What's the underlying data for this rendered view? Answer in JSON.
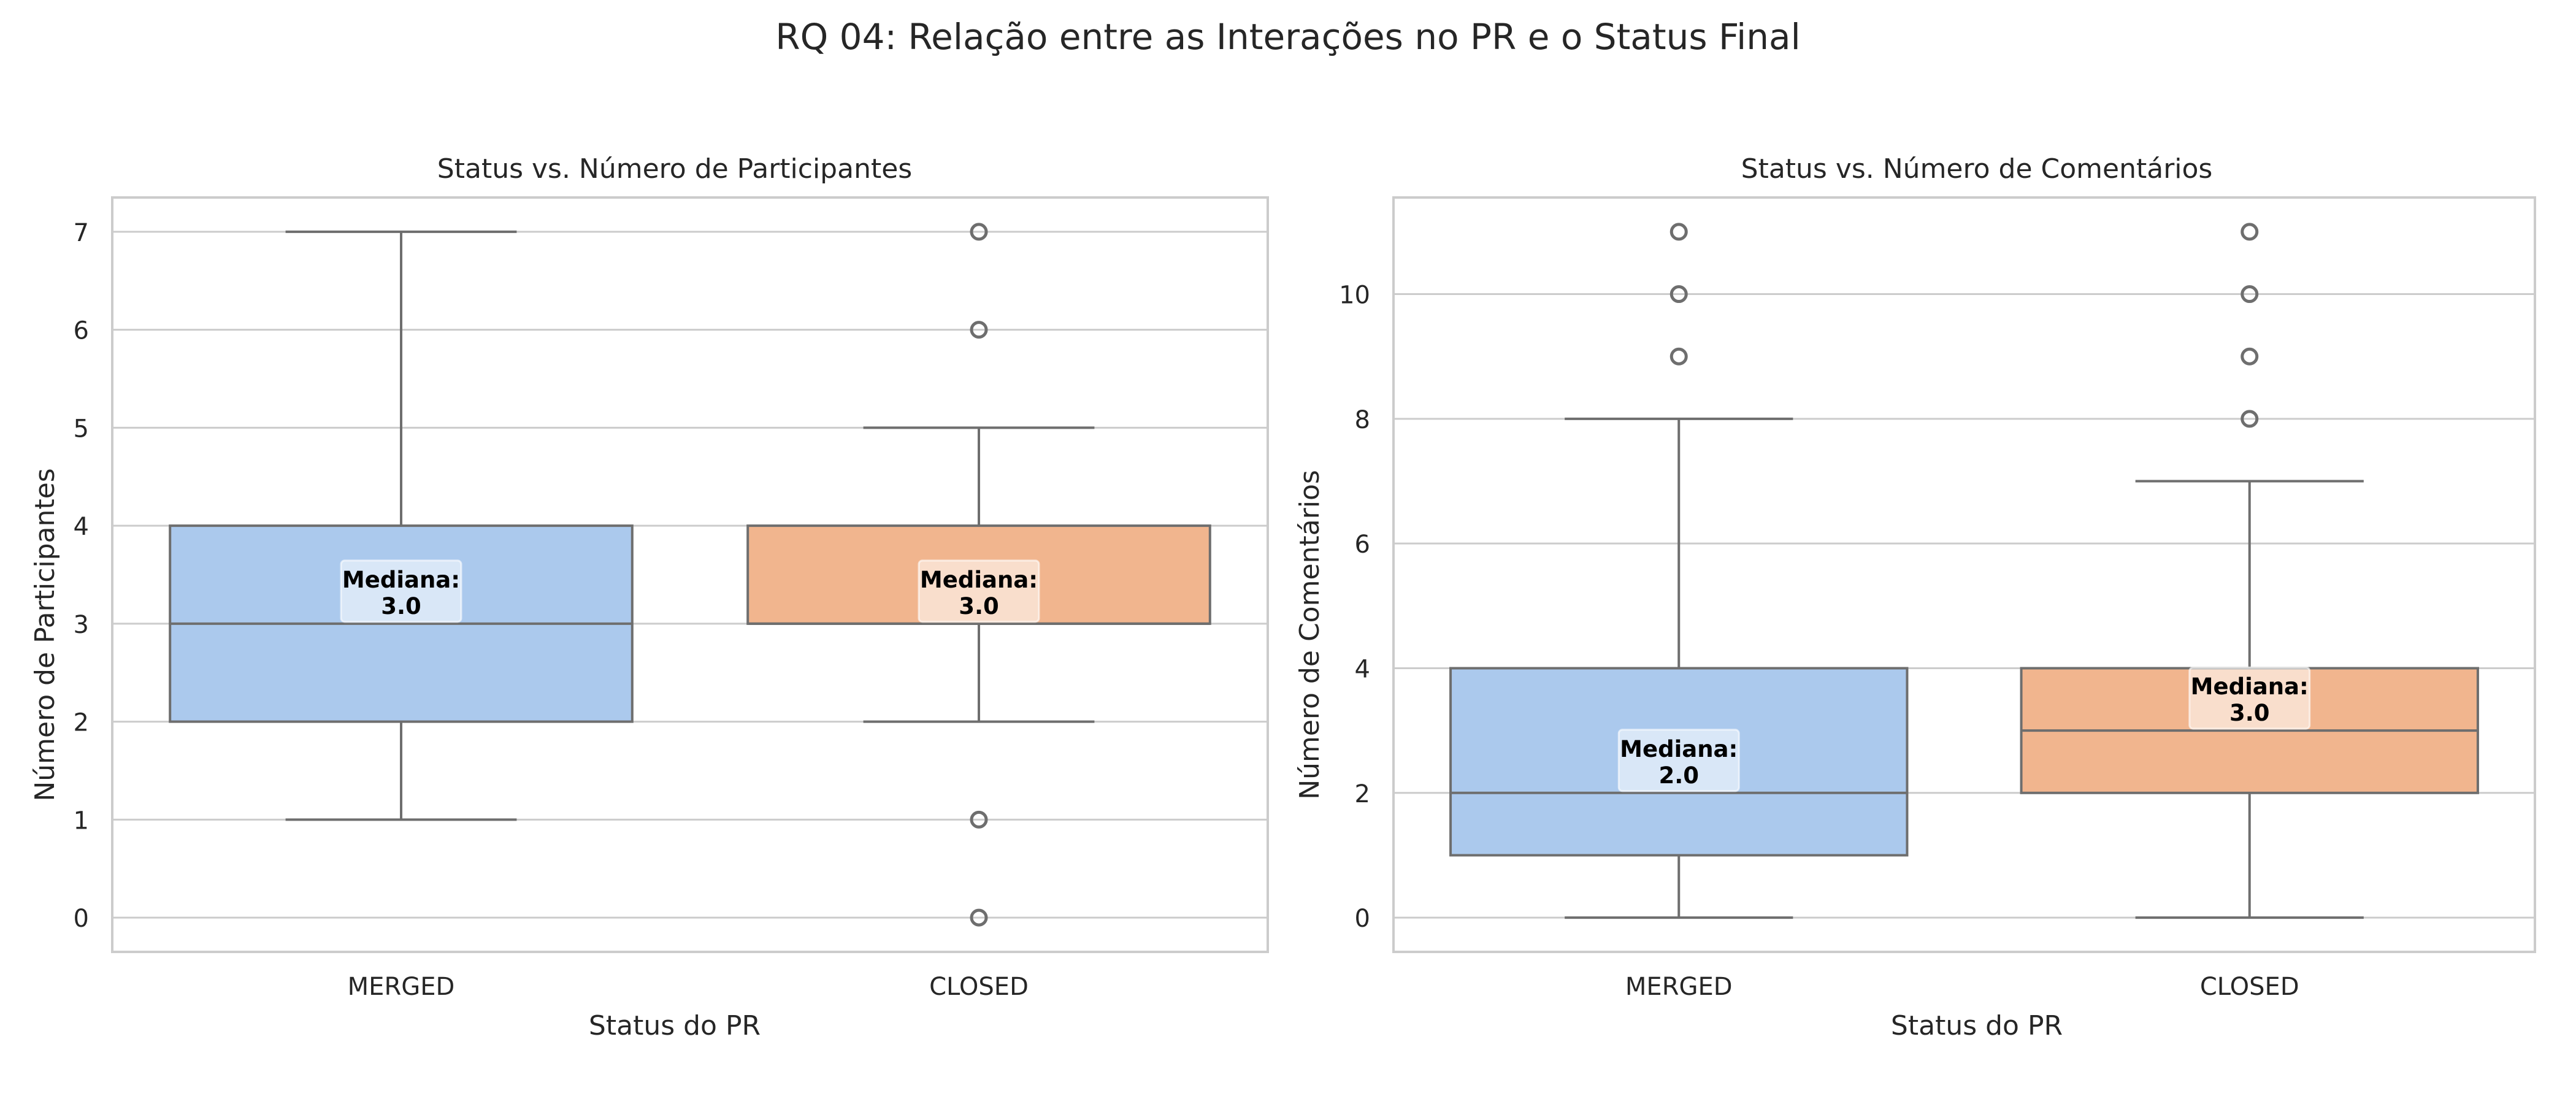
{
  "title": "RQ 04: Relação entre as Interações no PR e o Status Final",
  "median_label": "Mediana:",
  "chart_data": [
    {
      "type": "box",
      "title": "Status vs. Número de Participantes",
      "xlabel": "Status do PR",
      "ylabel": "Número de Participantes",
      "categories": [
        "MERGED",
        "CLOSED"
      ],
      "ylim": [
        -0.35,
        7.35
      ],
      "yticks": [
        0,
        1,
        2,
        3,
        4,
        5,
        6,
        7
      ],
      "grid": true,
      "colors": [
        "#abc9ed",
        "#f1b58e"
      ],
      "boxes": [
        {
          "category": "MERGED",
          "whisker_low": 1,
          "q1": 2,
          "median": 3,
          "q3": 4,
          "whisker_high": 7,
          "outliers": [],
          "median_text": "3.0"
        },
        {
          "category": "CLOSED",
          "whisker_low": 2,
          "q1": 3,
          "median": 3,
          "q3": 4,
          "whisker_high": 5,
          "outliers": [
            7,
            6,
            1,
            0
          ],
          "median_text": "3.0"
        }
      ]
    },
    {
      "type": "box",
      "title": "Status vs. Número de Comentários",
      "xlabel": "Status do PR",
      "ylabel": "Número de Comentários",
      "categories": [
        "MERGED",
        "CLOSED"
      ],
      "ylim": [
        -0.55,
        11.55
      ],
      "yticks": [
        0,
        2,
        4,
        6,
        8,
        10
      ],
      "grid": true,
      "colors": [
        "#abc9ed",
        "#f1b58e"
      ],
      "boxes": [
        {
          "category": "MERGED",
          "whisker_low": 0,
          "q1": 1,
          "median": 2,
          "q3": 4,
          "whisker_high": 8,
          "outliers": [
            11,
            10,
            9
          ],
          "median_text": "2.0"
        },
        {
          "category": "CLOSED",
          "whisker_low": 0,
          "q1": 2,
          "median": 3,
          "q3": 4,
          "whisker_high": 7,
          "outliers": [
            11,
            10,
            9,
            8
          ],
          "median_text": "3.0"
        }
      ]
    }
  ]
}
